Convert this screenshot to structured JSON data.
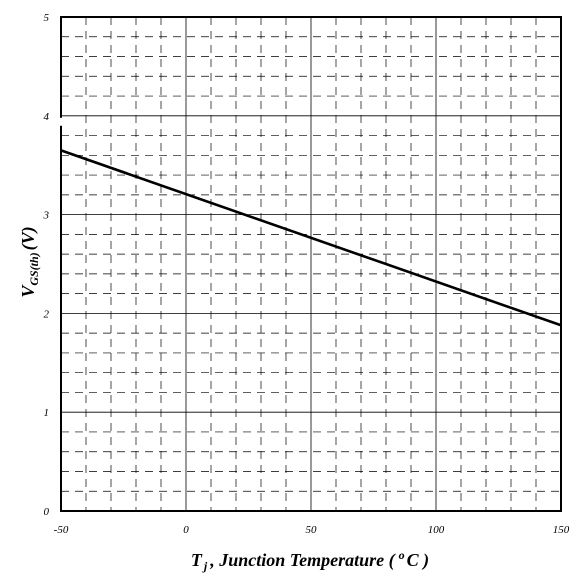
{
  "chart_data": {
    "type": "line",
    "xlabel": {
      "symbol": "T",
      "subscript": "j",
      "text": ", Junction Temperature (",
      "superscript": "o",
      "unit": "C )"
    },
    "ylabel": {
      "symbol": "V",
      "subscript": "GS(th)",
      "unit": "(V)"
    },
    "xlim": [
      -50,
      150
    ],
    "ylim": [
      0,
      5
    ],
    "x_ticks": [
      -50,
      0,
      50,
      100,
      150
    ],
    "y_ticks": [
      0,
      1,
      2,
      3,
      4,
      5
    ],
    "x_minor_step": 10,
    "y_minor_step": 0.2,
    "grid": true,
    "series": [
      {
        "x": [
          -50,
          150
        ],
        "y": [
          3.65,
          1.88
        ],
        "color": "#000000"
      }
    ]
  }
}
